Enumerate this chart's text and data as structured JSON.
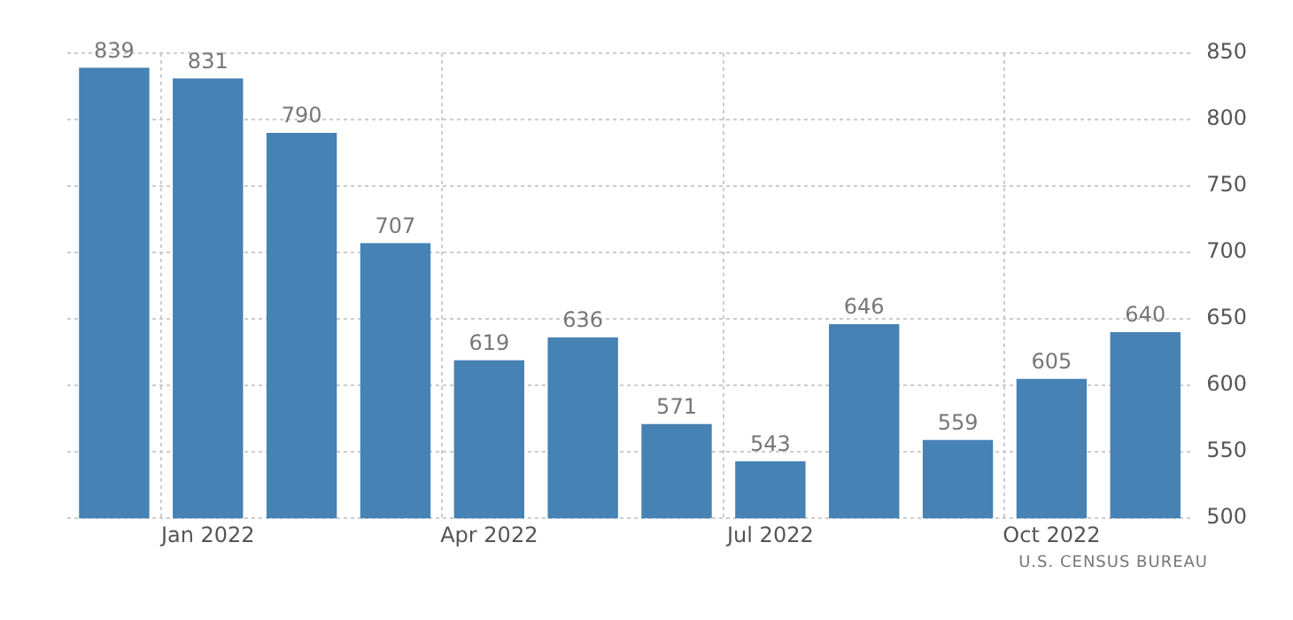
{
  "chart_data": {
    "type": "bar",
    "categories": [
      null,
      "Jan 2022",
      null,
      null,
      "Apr 2022",
      null,
      null,
      "Jul 2022",
      null,
      null,
      "Oct 2022",
      null
    ],
    "values": [
      839,
      831,
      790,
      707,
      619,
      636,
      571,
      543,
      646,
      559,
      605,
      640
    ],
    "color": "#4682b4",
    "ylim": [
      500,
      850
    ],
    "yticks": [
      500,
      550,
      600,
      650,
      700,
      750,
      800,
      850
    ],
    "grid": true,
    "data_labels": true,
    "legend": false,
    "annotations": [
      "U.S. CENSUS BUREAU"
    ]
  }
}
